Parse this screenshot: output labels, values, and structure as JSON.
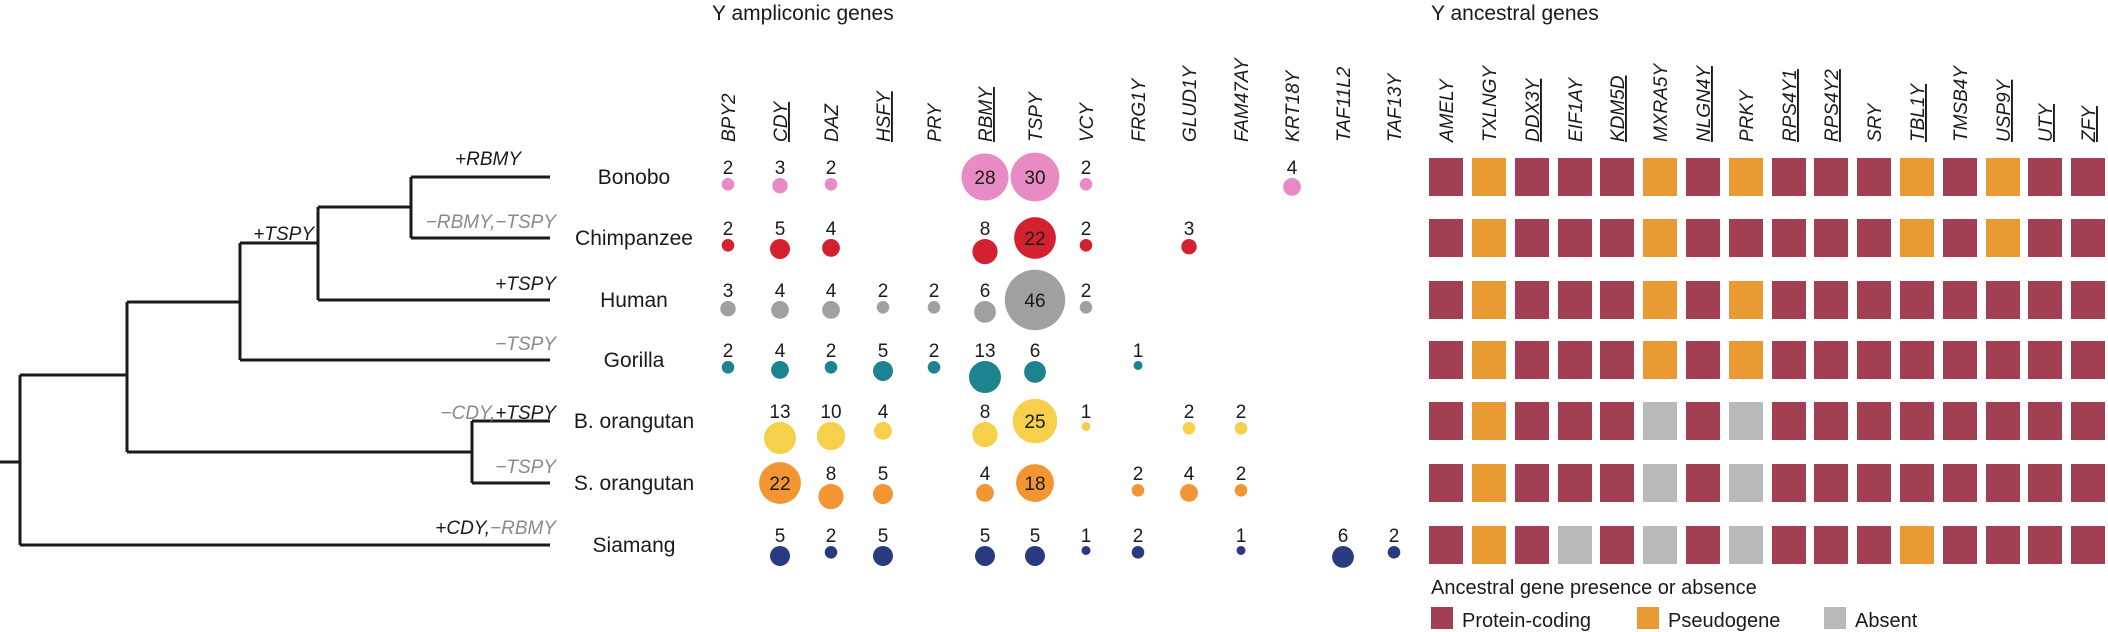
{
  "titles": {
    "ampliconic": "Y ampliconic genes",
    "ancestral": "Y ancestral genes"
  },
  "colors": {
    "protein_coding": "#a23f52",
    "pseudogene": "#ea9a33",
    "absent": "#b7b9ba"
  },
  "species": [
    {
      "name": "Bonobo",
      "color": "#e88ac4"
    },
    {
      "name": "Chimpanzee",
      "color": "#d42130"
    },
    {
      "name": "Human",
      "color": "#a0a0a0"
    },
    {
      "name": "Gorilla",
      "color": "#1d8391"
    },
    {
      "name": "B. orangutan",
      "color": "#f6cf4b"
    },
    {
      "name": "S. orangutan",
      "color": "#f39532"
    },
    {
      "name": "Siamang",
      "color": "#2a3a7e"
    }
  ],
  "ampliconic_genes": [
    {
      "name": "BPY2",
      "underline": false
    },
    {
      "name": "CDY",
      "underline": true
    },
    {
      "name": "DAZ",
      "underline": false
    },
    {
      "name": "HSFY",
      "underline": true
    },
    {
      "name": "PRY",
      "underline": false
    },
    {
      "name": "RBMY",
      "underline": true
    },
    {
      "name": "TSPY",
      "underline": false
    },
    {
      "name": "VCY",
      "underline": false
    },
    {
      "name": "FRG1Y",
      "underline": false
    },
    {
      "name": "GLUD1Y",
      "underline": false
    },
    {
      "name": "FAM47AY",
      "underline": false
    },
    {
      "name": "KRT18Y",
      "underline": false
    },
    {
      "name": "TAF11L2",
      "underline": false
    },
    {
      "name": "TAF13Y",
      "underline": false
    }
  ],
  "ampliconic_counts": [
    [
      2,
      3,
      2,
      null,
      null,
      28,
      30,
      2,
      null,
      null,
      null,
      4,
      null,
      null
    ],
    [
      2,
      5,
      4,
      null,
      null,
      8,
      22,
      2,
      null,
      3,
      null,
      null,
      null,
      null
    ],
    [
      3,
      4,
      4,
      2,
      2,
      6,
      46,
      2,
      null,
      null,
      null,
      null,
      null,
      null
    ],
    [
      2,
      4,
      2,
      5,
      2,
      13,
      6,
      null,
      1,
      null,
      null,
      null,
      null,
      null
    ],
    [
      null,
      13,
      10,
      4,
      null,
      8,
      25,
      1,
      null,
      2,
      2,
      null,
      null,
      null
    ],
    [
      null,
      22,
      8,
      5,
      null,
      4,
      18,
      null,
      2,
      4,
      2,
      null,
      null,
      null
    ],
    [
      null,
      5,
      2,
      5,
      null,
      5,
      5,
      1,
      2,
      null,
      1,
      null,
      6,
      2
    ]
  ],
  "ancestral_genes": [
    {
      "name": "AMELY",
      "underline": false
    },
    {
      "name": "TXLNGY",
      "underline": false
    },
    {
      "name": "DDX3Y",
      "underline": true
    },
    {
      "name": "EIF1AY",
      "underline": false
    },
    {
      "name": "KDM5D",
      "underline": true
    },
    {
      "name": "MXRA5Y",
      "underline": false
    },
    {
      "name": "NLGN4Y",
      "underline": true
    },
    {
      "name": "PRKY",
      "underline": false
    },
    {
      "name": "RPS4Y1",
      "underline": true
    },
    {
      "name": "RPS4Y2",
      "underline": true
    },
    {
      "name": "SRY",
      "underline": false
    },
    {
      "name": "TBL1Y",
      "underline": true
    },
    {
      "name": "TMSB4Y",
      "underline": false
    },
    {
      "name": "USP9Y",
      "underline": true
    },
    {
      "name": "UTY",
      "underline": true
    },
    {
      "name": "ZFY",
      "underline": true
    }
  ],
  "ancestral_status": [
    [
      "P",
      "S",
      "P",
      "P",
      "P",
      "S",
      "P",
      "S",
      "P",
      "P",
      "P",
      "S",
      "P",
      "S",
      "P",
      "P"
    ],
    [
      "P",
      "S",
      "P",
      "P",
      "P",
      "S",
      "P",
      "P",
      "P",
      "P",
      "P",
      "S",
      "P",
      "S",
      "P",
      "P"
    ],
    [
      "P",
      "S",
      "P",
      "P",
      "P",
      "S",
      "P",
      "S",
      "P",
      "P",
      "P",
      "P",
      "P",
      "P",
      "P",
      "P"
    ],
    [
      "P",
      "S",
      "P",
      "P",
      "P",
      "S",
      "P",
      "S",
      "P",
      "P",
      "P",
      "P",
      "P",
      "P",
      "P",
      "P"
    ],
    [
      "P",
      "S",
      "P",
      "P",
      "P",
      "A",
      "P",
      "A",
      "P",
      "P",
      "P",
      "P",
      "P",
      "P",
      "P",
      "P"
    ],
    [
      "P",
      "S",
      "P",
      "P",
      "P",
      "A",
      "P",
      "A",
      "P",
      "P",
      "P",
      "P",
      "P",
      "P",
      "P",
      "P"
    ],
    [
      "P",
      "S",
      "P",
      "A",
      "P",
      "A",
      "P",
      "A",
      "P",
      "P",
      "P",
      "S",
      "P",
      "P",
      "P",
      "P"
    ]
  ],
  "tree_events": [
    {
      "id": "bonobo",
      "parts": [
        {
          "text": "+RBMY",
          "kind": "gain"
        }
      ]
    },
    {
      "id": "chimp",
      "parts": [
        {
          "text": "−RBMY,−TSPY",
          "kind": "loss"
        }
      ]
    },
    {
      "id": "human",
      "parts": [
        {
          "text": "+TSPY",
          "kind": "gain"
        }
      ]
    },
    {
      "id": "gorilla",
      "parts": [
        {
          "text": "−TSPY",
          "kind": "loss"
        }
      ]
    },
    {
      "id": "borang",
      "parts": [
        {
          "text": "−CDY,",
          "kind": "loss"
        },
        {
          "text": "+TSPY",
          "kind": "gain"
        }
      ]
    },
    {
      "id": "sorang",
      "parts": [
        {
          "text": "−TSPY",
          "kind": "loss"
        }
      ]
    },
    {
      "id": "siamang",
      "parts": [
        {
          "text": "+CDY,",
          "kind": "gain"
        },
        {
          "text": "−RBMY",
          "kind": "loss"
        }
      ]
    },
    {
      "id": "hominini",
      "parts": [
        {
          "text": "+TSPY",
          "kind": "gain"
        }
      ]
    }
  ],
  "legend": {
    "title": "Ancestral gene presence or absence",
    "items": [
      {
        "label": "Protein-coding",
        "status": "P"
      },
      {
        "label": "Pseudogene",
        "status": "S"
      },
      {
        "label": "Absent",
        "status": "A"
      }
    ]
  }
}
